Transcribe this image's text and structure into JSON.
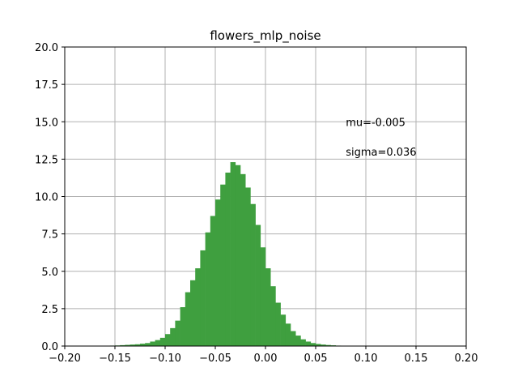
{
  "chart_data": {
    "type": "bar",
    "title": "flowers_mlp_noise",
    "xlabel": "",
    "ylabel": "",
    "xlim": [
      -0.2,
      0.2
    ],
    "ylim": [
      0,
      20
    ],
    "x_ticks": [
      "−0.20",
      "−0.15",
      "−0.10",
      "−0.05",
      "0.00",
      "0.05",
      "0.10",
      "0.15",
      "0.20"
    ],
    "x_tick_values": [
      -0.2,
      -0.15,
      -0.1,
      -0.05,
      0.0,
      0.05,
      0.1,
      0.15,
      0.2
    ],
    "y_ticks": [
      "0.0",
      "2.5",
      "5.0",
      "7.5",
      "10.0",
      "12.5",
      "15.0",
      "17.5",
      "20.0"
    ],
    "y_tick_values": [
      0,
      2.5,
      5,
      7.5,
      10,
      12.5,
      15,
      17.5,
      20
    ],
    "grid": true,
    "bar_color": "#3f9f3f",
    "bins": {
      "start": -0.16,
      "width": 0.005,
      "values": [
        0.02,
        0.03,
        0.04,
        0.06,
        0.08,
        0.1,
        0.12,
        0.16,
        0.2,
        0.3,
        0.4,
        0.55,
        0.8,
        1.2,
        1.7,
        2.6,
        3.6,
        4.4,
        5.2,
        6.4,
        7.6,
        8.7,
        9.8,
        10.8,
        11.6,
        12.3,
        12.1,
        11.5,
        10.6,
        9.5,
        8.1,
        6.6,
        5.2,
        4.0,
        2.9,
        2.1,
        1.5,
        1.0,
        0.7,
        0.45,
        0.3,
        0.2,
        0.14,
        0.1,
        0.07,
        0.05,
        0.03,
        0.02,
        0.01
      ]
    },
    "annotations": [
      {
        "text": "mu=-0.005",
        "x": 0.08,
        "y": 15.0
      },
      {
        "text": "sigma=0.036",
        "x": 0.08,
        "y": 13.0
      }
    ]
  }
}
